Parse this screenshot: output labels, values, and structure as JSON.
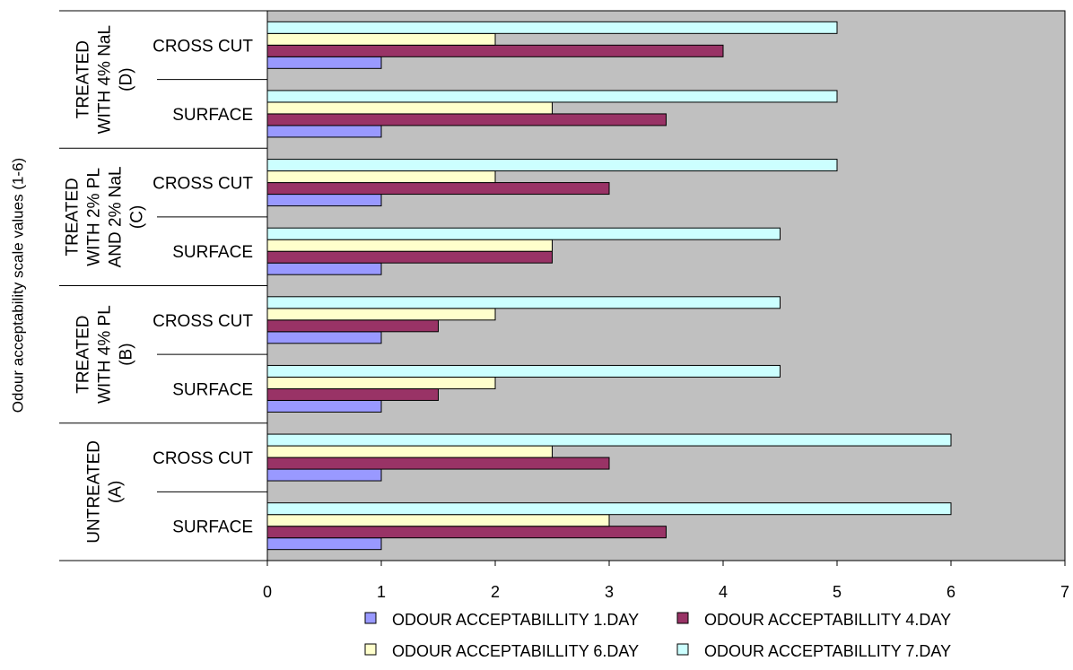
{
  "chart_data": {
    "type": "bar",
    "orientation": "horizontal",
    "ylabel": "Odour acceptability scale values (1-6)",
    "xlabel": "",
    "xlim": [
      0,
      7
    ],
    "x_ticks": [
      "0",
      "1",
      "2",
      "3",
      "4",
      "5",
      "6",
      "7"
    ],
    "grid": false,
    "plot_background": "#c0c0c0",
    "legend_position": "bottom",
    "groups": [
      {
        "label": [
          "UNTREATED",
          "(A)"
        ],
        "subcategories": [
          "SURFACE",
          "CROSS CUT"
        ]
      },
      {
        "label": [
          "TREATED",
          "WITH 4% PL",
          "(B)"
        ],
        "subcategories": [
          "SURFACE",
          "CROSS CUT"
        ]
      },
      {
        "label": [
          "TREATED",
          "WITH 2% PL",
          "AND 2% NaL",
          "(C)"
        ],
        "subcategories": [
          "SURFACE",
          "CROSS CUT"
        ]
      },
      {
        "label": [
          "TREATED",
          "WITH 4% NaL",
          "(D)"
        ],
        "subcategories": [
          "SURFACE",
          "CROSS CUT"
        ]
      }
    ],
    "series": [
      {
        "name": "ODOUR ACCEPTABILLITY 1.DAY",
        "color": "#9999ff",
        "values": [
          1,
          1,
          1,
          1,
          1,
          1,
          1,
          1
        ]
      },
      {
        "name": "ODOUR ACCEPTABILLITY 4.DAY",
        "color": "#993366",
        "values": [
          3.5,
          3,
          1.5,
          1.5,
          2.5,
          3,
          3.5,
          4
        ]
      },
      {
        "name": "ODOUR ACCEPTABILLITY 6.DAY",
        "color": "#ffffcc",
        "values": [
          3,
          2.5,
          2,
          2,
          2.5,
          2,
          2.5,
          2
        ]
      },
      {
        "name": "ODOUR ACCEPTABILLITY 7.DAY",
        "color": "#ccffff",
        "values": [
          6,
          6,
          4.5,
          4.5,
          4.5,
          5,
          5,
          5
        ]
      }
    ]
  }
}
